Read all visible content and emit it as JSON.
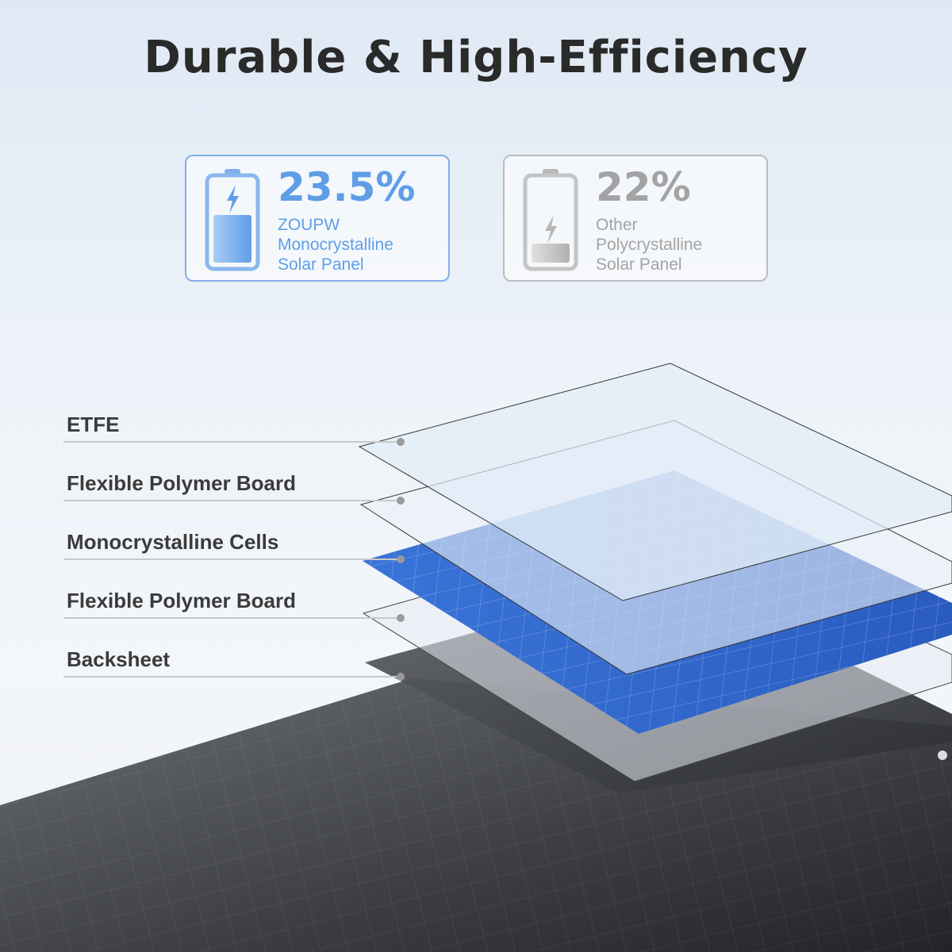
{
  "title": "Durable & High-Efficiency",
  "comparison": [
    {
      "percent": "23.5%",
      "lines": [
        "ZOUPW",
        "Monocrystalline",
        "Solar Panel"
      ],
      "color": "#5f9ee6",
      "charge_level": 0.55
    },
    {
      "percent": "22%",
      "lines": [
        "Other",
        "Polycrystalline",
        "Solar Panel"
      ],
      "color": "#a3a3a3",
      "charge_level": 0.2
    }
  ],
  "layers": [
    "ETFE",
    "Flexible Polymer Board",
    "Monocrystalline Cells",
    "Flexible Polymer Board",
    "Backsheet"
  ]
}
